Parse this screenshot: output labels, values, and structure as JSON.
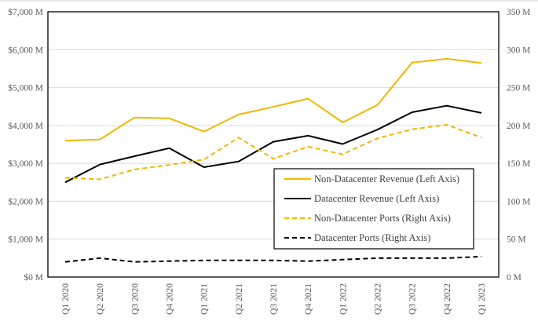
{
  "chart_data": {
    "type": "line",
    "categories": [
      "Q1 2020",
      "Q2 2020",
      "Q3 2020",
      "Q4 2020",
      "Q1 2021",
      "Q2 2021",
      "Q3 2021",
      "Q4 2021",
      "Q1 2022",
      "Q2 2022",
      "Q3 2022",
      "Q4 2022",
      "Q1 2023"
    ],
    "y_left": {
      "min": 0,
      "max": 7000,
      "unit": "M",
      "ticks": [
        "$0 M",
        "$1,000 M",
        "$2,000 M",
        "$3,000 M",
        "$4,000 M",
        "$5,000 M",
        "$6,000 M",
        "$7,000 M"
      ]
    },
    "y_right": {
      "min": 0,
      "max": 350,
      "unit": "M",
      "ticks": [
        "0 M",
        "50 M",
        "100 M",
        "150 M",
        "200 M",
        "250 M",
        "300 M",
        "350 M"
      ]
    },
    "grid": true,
    "legend_position": "bottom-right",
    "series": [
      {
        "name": "Non-Datacenter Revenue (Left Axis)",
        "axis": "left",
        "color": "#F2B600",
        "dash": false,
        "values": [
          3600,
          3630,
          4210,
          4190,
          3840,
          4290,
          4490,
          4710,
          4080,
          4540,
          5660,
          5760,
          5650
        ]
      },
      {
        "name": "Datacenter Revenue (Left Axis)",
        "axis": "left",
        "color": "#000000",
        "dash": false,
        "values": [
          2500,
          2970,
          3190,
          3400,
          2900,
          3050,
          3570,
          3730,
          3510,
          3890,
          4350,
          4520,
          4330
        ]
      },
      {
        "name": "Non-Datacenter Ports (Right Axis)",
        "axis": "right",
        "color": "#F2B600",
        "dash": true,
        "values": [
          131,
          129,
          142,
          148,
          155,
          184,
          156,
          172,
          162,
          183,
          195,
          201,
          184
        ]
      },
      {
        "name": "Datacenter Ports (Right Axis)",
        "axis": "right",
        "color": "#000000",
        "dash": true,
        "values": [
          20,
          25,
          20,
          21,
          22,
          22,
          22,
          21,
          23,
          25,
          25,
          25,
          27
        ]
      }
    ]
  }
}
